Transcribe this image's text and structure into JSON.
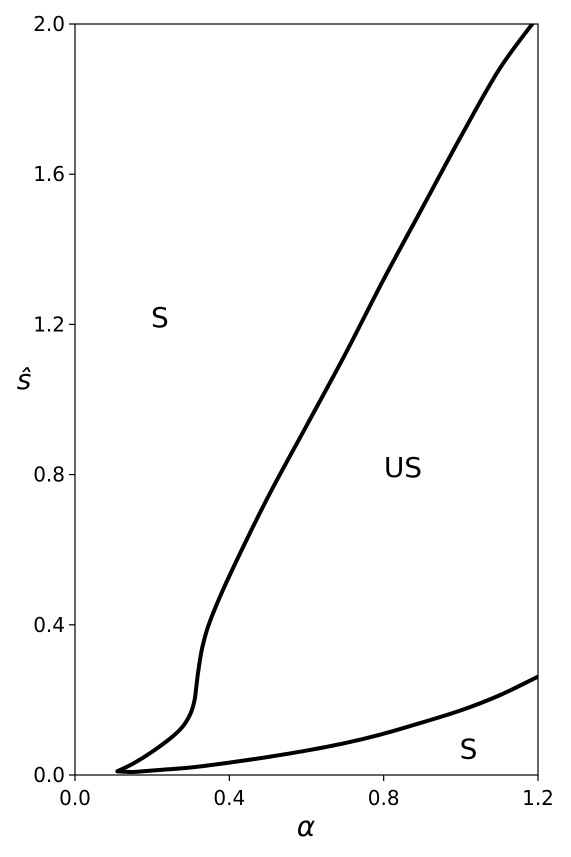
{
  "chart_data": {
    "type": "line",
    "xlabel": "α",
    "ylabel": "ŝ",
    "xlim": [
      0.0,
      1.2
    ],
    "ylim": [
      0.0,
      2.0
    ],
    "xticks": [
      "0.0",
      "0.4",
      "0.8",
      "1.2"
    ],
    "yticks": [
      "0.0",
      "0.4",
      "0.8",
      "1.2",
      "1.6",
      "2.0"
    ],
    "xtick_values": [
      0.0,
      0.4,
      0.8,
      1.2
    ],
    "ytick_values": [
      0.0,
      0.4,
      0.8,
      1.2,
      1.6,
      2.0
    ],
    "grid": false,
    "colors": {
      "line": "#000000"
    },
    "series": [
      {
        "points": [
          [
            0.11,
            0.01
          ],
          [
            0.15,
            0.03
          ],
          [
            0.2,
            0.062
          ],
          [
            0.25,
            0.1
          ],
          [
            0.28,
            0.13
          ],
          [
            0.3,
            0.165
          ],
          [
            0.31,
            0.2
          ],
          [
            0.315,
            0.24
          ],
          [
            0.32,
            0.28
          ],
          [
            0.33,
            0.34
          ],
          [
            0.35,
            0.41
          ],
          [
            0.4,
            0.53
          ],
          [
            0.5,
            0.74
          ],
          [
            0.6,
            0.93
          ],
          [
            0.7,
            1.12
          ],
          [
            0.8,
            1.32
          ],
          [
            0.9,
            1.51
          ],
          [
            1.0,
            1.7
          ],
          [
            1.1,
            1.88
          ],
          [
            1.2,
            2.02
          ]
        ]
      },
      {
        "points": [
          [
            0.11,
            0.01
          ],
          [
            0.15,
            0.008
          ],
          [
            0.2,
            0.012
          ],
          [
            0.3,
            0.02
          ],
          [
            0.4,
            0.033
          ],
          [
            0.5,
            0.048
          ],
          [
            0.6,
            0.065
          ],
          [
            0.7,
            0.085
          ],
          [
            0.8,
            0.11
          ],
          [
            0.9,
            0.14
          ],
          [
            1.0,
            0.172
          ],
          [
            1.1,
            0.212
          ],
          [
            1.2,
            0.262
          ]
        ]
      }
    ],
    "annotations": [
      {
        "text": "S",
        "x": 0.22,
        "y": 1.22
      },
      {
        "text": "US",
        "x": 0.85,
        "y": 0.82
      },
      {
        "text": "S",
        "x": 1.02,
        "y": 0.07
      }
    ]
  }
}
